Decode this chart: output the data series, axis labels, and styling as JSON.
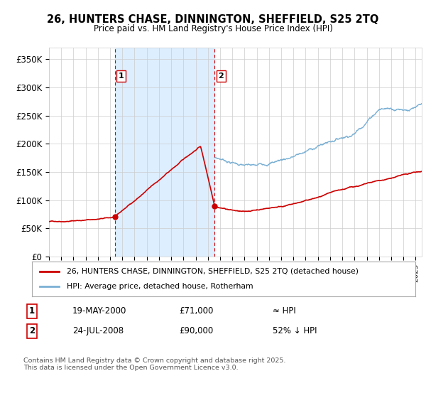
{
  "title": "26, HUNTERS CHASE, DINNINGTON, SHEFFIELD, S25 2TQ",
  "subtitle": "Price paid vs. HM Land Registry's House Price Index (HPI)",
  "ylim": [
    0,
    370000
  ],
  "yticks": [
    0,
    50000,
    100000,
    150000,
    200000,
    250000,
    300000,
    350000
  ],
  "ytick_labels": [
    "£0",
    "£50K",
    "£100K",
    "£150K",
    "£200K",
    "£250K",
    "£300K",
    "£350K"
  ],
  "sale1_x": 2000.38,
  "sale1_price": 71000,
  "sale2_x": 2008.56,
  "sale2_price": 90000,
  "red_line_color": "#cc0000",
  "blue_line_color": "#7ab0d4",
  "shade_color": "#ddeeff",
  "dashed_color": "#cc0000",
  "grid_color": "#cccccc",
  "background_color": "#ffffff",
  "legend_label_red": "26, HUNTERS CHASE, DINNINGTON, SHEFFIELD, S25 2TQ (detached house)",
  "legend_label_blue": "HPI: Average price, detached house, Rotherham",
  "annotation1_date": "19-MAY-2000",
  "annotation1_price": "£71,000",
  "annotation1_hpi": "≈ HPI",
  "annotation2_date": "24-JUL-2008",
  "annotation2_price": "£90,000",
  "annotation2_hpi": "52% ↓ HPI",
  "footer": "Contains HM Land Registry data © Crown copyright and database right 2025.\nThis data is licensed under the Open Government Licence v3.0.",
  "xmin": 1995,
  "xmax": 2025.5
}
